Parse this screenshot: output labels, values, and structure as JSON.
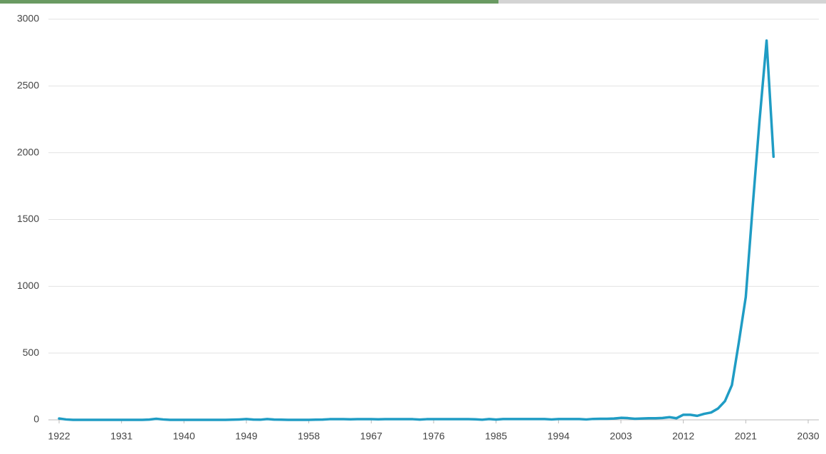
{
  "chart_data": {
    "type": "line",
    "x": [
      1922,
      1923,
      1924,
      1925,
      1926,
      1927,
      1928,
      1929,
      1930,
      1931,
      1932,
      1933,
      1934,
      1935,
      1936,
      1937,
      1938,
      1939,
      1940,
      1941,
      1942,
      1943,
      1944,
      1945,
      1946,
      1947,
      1948,
      1949,
      1950,
      1951,
      1952,
      1953,
      1954,
      1955,
      1956,
      1957,
      1958,
      1959,
      1960,
      1961,
      1962,
      1963,
      1964,
      1965,
      1966,
      1967,
      1968,
      1969,
      1970,
      1971,
      1972,
      1973,
      1974,
      1975,
      1976,
      1977,
      1978,
      1979,
      1980,
      1981,
      1982,
      1983,
      1984,
      1985,
      1986,
      1987,
      1988,
      1989,
      1990,
      1991,
      1992,
      1993,
      1994,
      1995,
      1996,
      1997,
      1998,
      1999,
      2000,
      2001,
      2002,
      2003,
      2004,
      2005,
      2006,
      2007,
      2008,
      2009,
      2010,
      2011,
      2012,
      2013,
      2014,
      2015,
      2016,
      2017,
      2018,
      2019,
      2020,
      2021,
      2022,
      2023,
      2024,
      2025
    ],
    "values": [
      10,
      3,
      0,
      0,
      0,
      0,
      0,
      0,
      0,
      0,
      0,
      0,
      0,
      2,
      8,
      3,
      0,
      0,
      0,
      0,
      0,
      0,
      0,
      0,
      0,
      1,
      3,
      6,
      2,
      1,
      6,
      2,
      1,
      0,
      0,
      0,
      0,
      1,
      2,
      5,
      5,
      5,
      4,
      5,
      5,
      5,
      4,
      5,
      5,
      5,
      5,
      5,
      2,
      5,
      5,
      5,
      5,
      5,
      5,
      5,
      4,
      1,
      6,
      2,
      6,
      6,
      6,
      6,
      6,
      6,
      6,
      3,
      6,
      6,
      6,
      6,
      3,
      7,
      8,
      8,
      10,
      15,
      13,
      8,
      10,
      12,
      12,
      14,
      20,
      12,
      38,
      38,
      30,
      45,
      55,
      85,
      140,
      260,
      580,
      920,
      1600,
      2250,
      2840,
      1970
    ],
    "color": "#1f9cc4",
    "xlim": [
      1922,
      2030
    ],
    "xticks": [
      1922,
      1931,
      1940,
      1949,
      1958,
      1967,
      1976,
      1985,
      1994,
      2003,
      2012,
      2021,
      2030
    ],
    "ylim": [
      0,
      3000
    ],
    "yticks": [
      0,
      500,
      1000,
      1500,
      2000,
      2500,
      3000
    ],
    "grid": true
  }
}
